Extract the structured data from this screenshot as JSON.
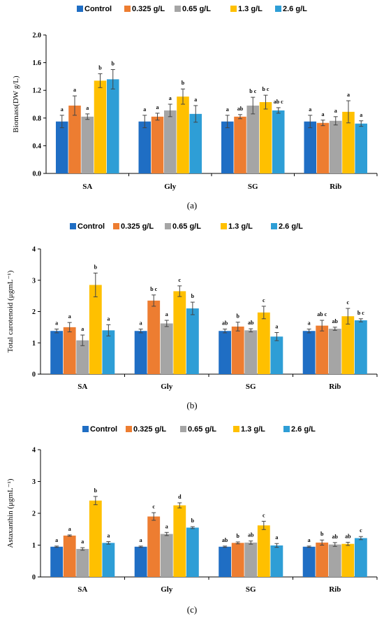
{
  "chart_data": [
    {
      "type": "bar",
      "panel_label": "(a)",
      "ylabel": "Biomass(DW  g/L)",
      "yticks": [
        "0.0",
        "0.4",
        "0.8",
        "1.2",
        "1.6",
        "2.0"
      ],
      "ylim": [
        0,
        2.0
      ],
      "categories": [
        "SA",
        "Gly",
        "SG",
        "Rib"
      ],
      "legend": [
        "Control",
        "0.325 g/L",
        "0.65 g/L",
        "1.3 g/L",
        "2.6 g/L"
      ],
      "legend_position": "top",
      "colors": [
        "#1f6ec4",
        "#ed7d31",
        "#a5a5a5",
        "#ffc000",
        "#2e9ed6"
      ],
      "series": [
        {
          "name": "Control",
          "values": [
            0.75,
            0.75,
            0.75,
            0.75
          ],
          "errors": [
            0.09,
            0.09,
            0.09,
            0.09
          ],
          "letters": [
            "a",
            "a",
            "a",
            "a"
          ]
        },
        {
          "name": "0.325 g/L",
          "values": [
            0.98,
            0.82,
            0.82,
            0.73
          ],
          "errors": [
            0.14,
            0.05,
            0.03,
            0.04
          ],
          "letters": [
            "a",
            "a",
            "ab",
            "a"
          ]
        },
        {
          "name": "0.65 g/L",
          "values": [
            0.82,
            0.91,
            0.98,
            0.76
          ],
          "errors": [
            0.04,
            0.09,
            0.12,
            0.06
          ],
          "letters": [
            "a",
            "a",
            "b c",
            "a"
          ]
        },
        {
          "name": "1.3 g/L",
          "values": [
            1.34,
            1.11,
            1.03,
            0.89
          ],
          "errors": [
            0.1,
            0.11,
            0.1,
            0.16
          ],
          "letters": [
            "b",
            "b",
            "b c",
            "a"
          ]
        },
        {
          "name": "2.6 g/L",
          "values": [
            1.36,
            0.86,
            0.91,
            0.72
          ],
          "errors": [
            0.14,
            0.12,
            0.04,
            0.04
          ],
          "letters": [
            "b",
            "a",
            "ab c",
            "a"
          ]
        }
      ]
    },
    {
      "type": "bar",
      "panel_label": "(b)",
      "ylabel": "Total carotenoid (μgmL⁻¹)",
      "yticks": [
        "0",
        "1",
        "2",
        "3",
        "4"
      ],
      "ylim": [
        0,
        4
      ],
      "categories": [
        "SA",
        "Gly",
        "SG",
        "Rib"
      ],
      "legend": [
        "Control",
        "0.325 g/L",
        "0.65 g/L",
        "1.3 g/L",
        "2.6 g/L"
      ],
      "legend_position": "top",
      "colors": [
        "#1f6ec4",
        "#ed7d31",
        "#a5a5a5",
        "#ffc000",
        "#2e9ed6"
      ],
      "series": [
        {
          "name": "Control",
          "values": [
            1.38,
            1.38,
            1.38,
            1.38
          ],
          "errors": [
            0.06,
            0.06,
            0.06,
            0.06
          ],
          "letters": [
            "a",
            "a",
            "ab",
            "a"
          ]
        },
        {
          "name": "0.325 g/L",
          "values": [
            1.5,
            2.35,
            1.52,
            1.55
          ],
          "errors": [
            0.15,
            0.18,
            0.14,
            0.17
          ],
          "letters": [
            "a",
            "b c",
            "b",
            "ab c"
          ]
        },
        {
          "name": "0.65 g/L",
          "values": [
            1.08,
            1.62,
            1.4,
            1.45
          ],
          "errors": [
            0.17,
            0.1,
            0.05,
            0.05
          ],
          "letters": [
            "a",
            "a",
            "ab",
            "ab"
          ]
        },
        {
          "name": "1.3 g/L",
          "values": [
            2.85,
            2.65,
            1.97,
            1.85
          ],
          "errors": [
            0.38,
            0.17,
            0.2,
            0.25
          ],
          "letters": [
            "b",
            "c",
            "c",
            "c"
          ]
        },
        {
          "name": "2.6 g/L",
          "values": [
            1.4,
            2.1,
            1.2,
            1.72
          ],
          "errors": [
            0.18,
            0.2,
            0.13,
            0.05
          ],
          "letters": [
            "a",
            "b",
            "a",
            "b c"
          ]
        }
      ]
    },
    {
      "type": "bar",
      "panel_label": "(c)",
      "ylabel": "Astaxanthin (μgmL⁻¹)",
      "yticks": [
        "0",
        "1",
        "2",
        "3",
        "4"
      ],
      "ylim": [
        0,
        4
      ],
      "categories": [
        "SA",
        "Gly",
        "SG",
        "Rib"
      ],
      "legend": [
        "Control",
        "0.325 g/L",
        "0.65 g/L",
        "1.3 g/L",
        "2.6 g/L"
      ],
      "legend_position": "top",
      "colors": [
        "#1f6ec4",
        "#ed7d31",
        "#a5a5a5",
        "#ffc000",
        "#2e9ed6"
      ],
      "series": [
        {
          "name": "Control",
          "values": [
            0.95,
            0.95,
            0.95,
            0.95
          ],
          "errors": [
            0.02,
            0.02,
            0.02,
            0.02
          ],
          "letters": [
            "a",
            "a",
            "ab",
            "a"
          ]
        },
        {
          "name": "0.325 g/L",
          "values": [
            1.3,
            1.9,
            1.07,
            1.08
          ],
          "errors": [
            0.02,
            0.12,
            0.03,
            0.08
          ],
          "letters": [
            "a",
            "c",
            "b",
            "b"
          ]
        },
        {
          "name": "0.65 g/L",
          "values": [
            0.88,
            1.35,
            1.08,
            1.02
          ],
          "errors": [
            0.04,
            0.05,
            0.05,
            0.06
          ],
          "letters": [
            "a",
            "a",
            "ab",
            "ab"
          ]
        },
        {
          "name": "1.3 g/L",
          "values": [
            2.4,
            2.25,
            1.62,
            1.04
          ],
          "errors": [
            0.13,
            0.08,
            0.13,
            0.05
          ],
          "letters": [
            "b",
            "d",
            "c",
            "ab"
          ]
        },
        {
          "name": "2.6 g/L",
          "values": [
            1.07,
            1.55,
            0.99,
            1.22
          ],
          "errors": [
            0.04,
            0.03,
            0.06,
            0.05
          ],
          "letters": [
            "a",
            "b",
            "a",
            "c"
          ]
        }
      ]
    }
  ]
}
